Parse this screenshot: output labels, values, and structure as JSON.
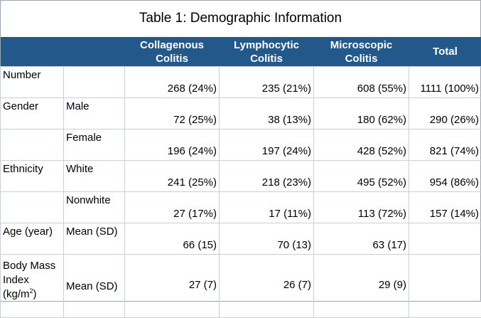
{
  "title": "Table 1: Demographic Information",
  "headers": {
    "col1": "",
    "col2": "",
    "collagenous": [
      "Collagenous",
      "Colitis"
    ],
    "lymphocytic": [
      "Lymphocytic",
      "Colitis"
    ],
    "microscopic": [
      "Microscopic",
      "Colitis"
    ],
    "total": "Total"
  },
  "rows": [
    {
      "label": "Number",
      "sub": "",
      "collagenous": "268 (24%)",
      "lymphocytic": "235 (21%)",
      "microscopic": "608 (55%)",
      "total": "1111 (100%)"
    },
    {
      "label": "Gender",
      "sub": "Male",
      "collagenous": "72 (25%)",
      "lymphocytic": "38 (13%)",
      "microscopic": "180 (62%)",
      "total": "290 (26%)"
    },
    {
      "label": "",
      "sub": "Female",
      "collagenous": "196 (24%)",
      "lymphocytic": "197 (24%)",
      "microscopic": "428 (52%)",
      "total": "821 (74%)"
    },
    {
      "label": "Ethnicity",
      "sub": "White",
      "collagenous": "241 (25%)",
      "lymphocytic": "218 (23%)",
      "microscopic": "495 (52%)",
      "total": "954 (86%)"
    },
    {
      "label": "",
      "sub": "Nonwhite",
      "collagenous": "27 (17%)",
      "lymphocytic": "17 (11%)",
      "microscopic": "113 (72%)",
      "total": "157 (14%)"
    },
    {
      "label": "Age (year)",
      "sub": "Mean (SD)",
      "collagenous": "66 (15)",
      "lymphocytic": "70 (13)",
      "microscopic": "63 (17)",
      "total": ""
    }
  ],
  "bmi_row": {
    "label_line1": "Body Mass",
    "label_line2": "Index",
    "label_unit": "(kg/m",
    "label_sup": "2",
    "label_close": ")",
    "sub": "Mean (SD)",
    "collagenous": "27 (7)",
    "lymphocytic": "26 (7)",
    "microscopic": "29 (9)",
    "total": ""
  }
}
